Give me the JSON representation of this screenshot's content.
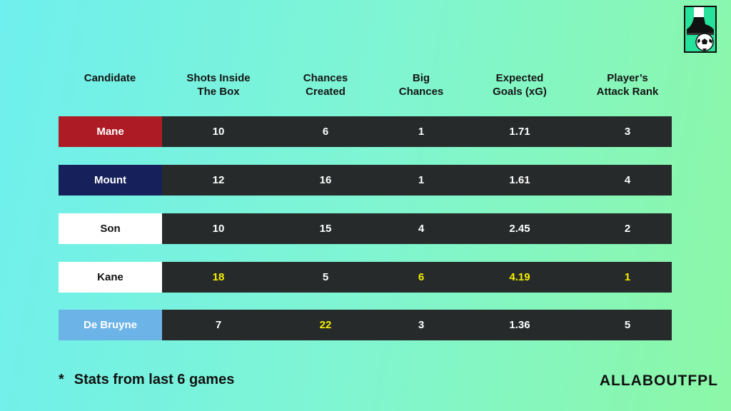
{
  "colors": {
    "background_start": "#6fefee",
    "background_end": "#8cf7a6",
    "stat_row_bg": "#262a2a",
    "highlight": "#f4f000",
    "value_text": "#ffffff"
  },
  "logo": {
    "icon": "boot-and-football-icon"
  },
  "chart_data": {
    "type": "table",
    "columns": [
      {
        "key": "candidate",
        "lines": [
          "Candidate"
        ]
      },
      {
        "key": "shots_inside_box",
        "lines": [
          "Shots Inside",
          "The Box"
        ]
      },
      {
        "key": "chances_created",
        "lines": [
          "Chances",
          "Created"
        ]
      },
      {
        "key": "big_chances",
        "lines": [
          "Big",
          "Chances"
        ]
      },
      {
        "key": "expected_goals",
        "lines": [
          "Expected",
          "Goals (xG)"
        ]
      },
      {
        "key": "attack_rank",
        "lines": [
          "Player’s",
          "Attack Rank"
        ]
      }
    ],
    "rows": [
      {
        "candidate": "Mane",
        "color": "#ad1b25",
        "text_color": "#ffffff",
        "values": [
          "10",
          "6",
          "1",
          "1.71",
          "3"
        ],
        "highlighted": [
          false,
          false,
          false,
          false,
          false
        ]
      },
      {
        "candidate": "Mount",
        "color": "#16215c",
        "text_color": "#ffffff",
        "values": [
          "12",
          "16",
          "1",
          "1.61",
          "4"
        ],
        "highlighted": [
          false,
          false,
          false,
          false,
          false
        ]
      },
      {
        "candidate": "Son",
        "color": "#ffffff",
        "text_color": "#111111",
        "values": [
          "10",
          "15",
          "4",
          "2.45",
          "2"
        ],
        "highlighted": [
          false,
          false,
          false,
          false,
          false
        ]
      },
      {
        "candidate": "Kane",
        "color": "#ffffff",
        "text_color": "#111111",
        "values": [
          "18",
          "5",
          "6",
          "4.19",
          "1"
        ],
        "highlighted": [
          true,
          false,
          true,
          true,
          true
        ]
      },
      {
        "candidate": "De Bruyne",
        "color": "#6cb3e8",
        "text_color": "#ffffff",
        "values": [
          "7",
          "22",
          "3",
          "1.36",
          "5"
        ],
        "highlighted": [
          false,
          true,
          false,
          false,
          false
        ]
      }
    ]
  },
  "footnote": {
    "star": "*",
    "text": "Stats from last 6 games"
  },
  "brand": "ALLABOUTFPL"
}
